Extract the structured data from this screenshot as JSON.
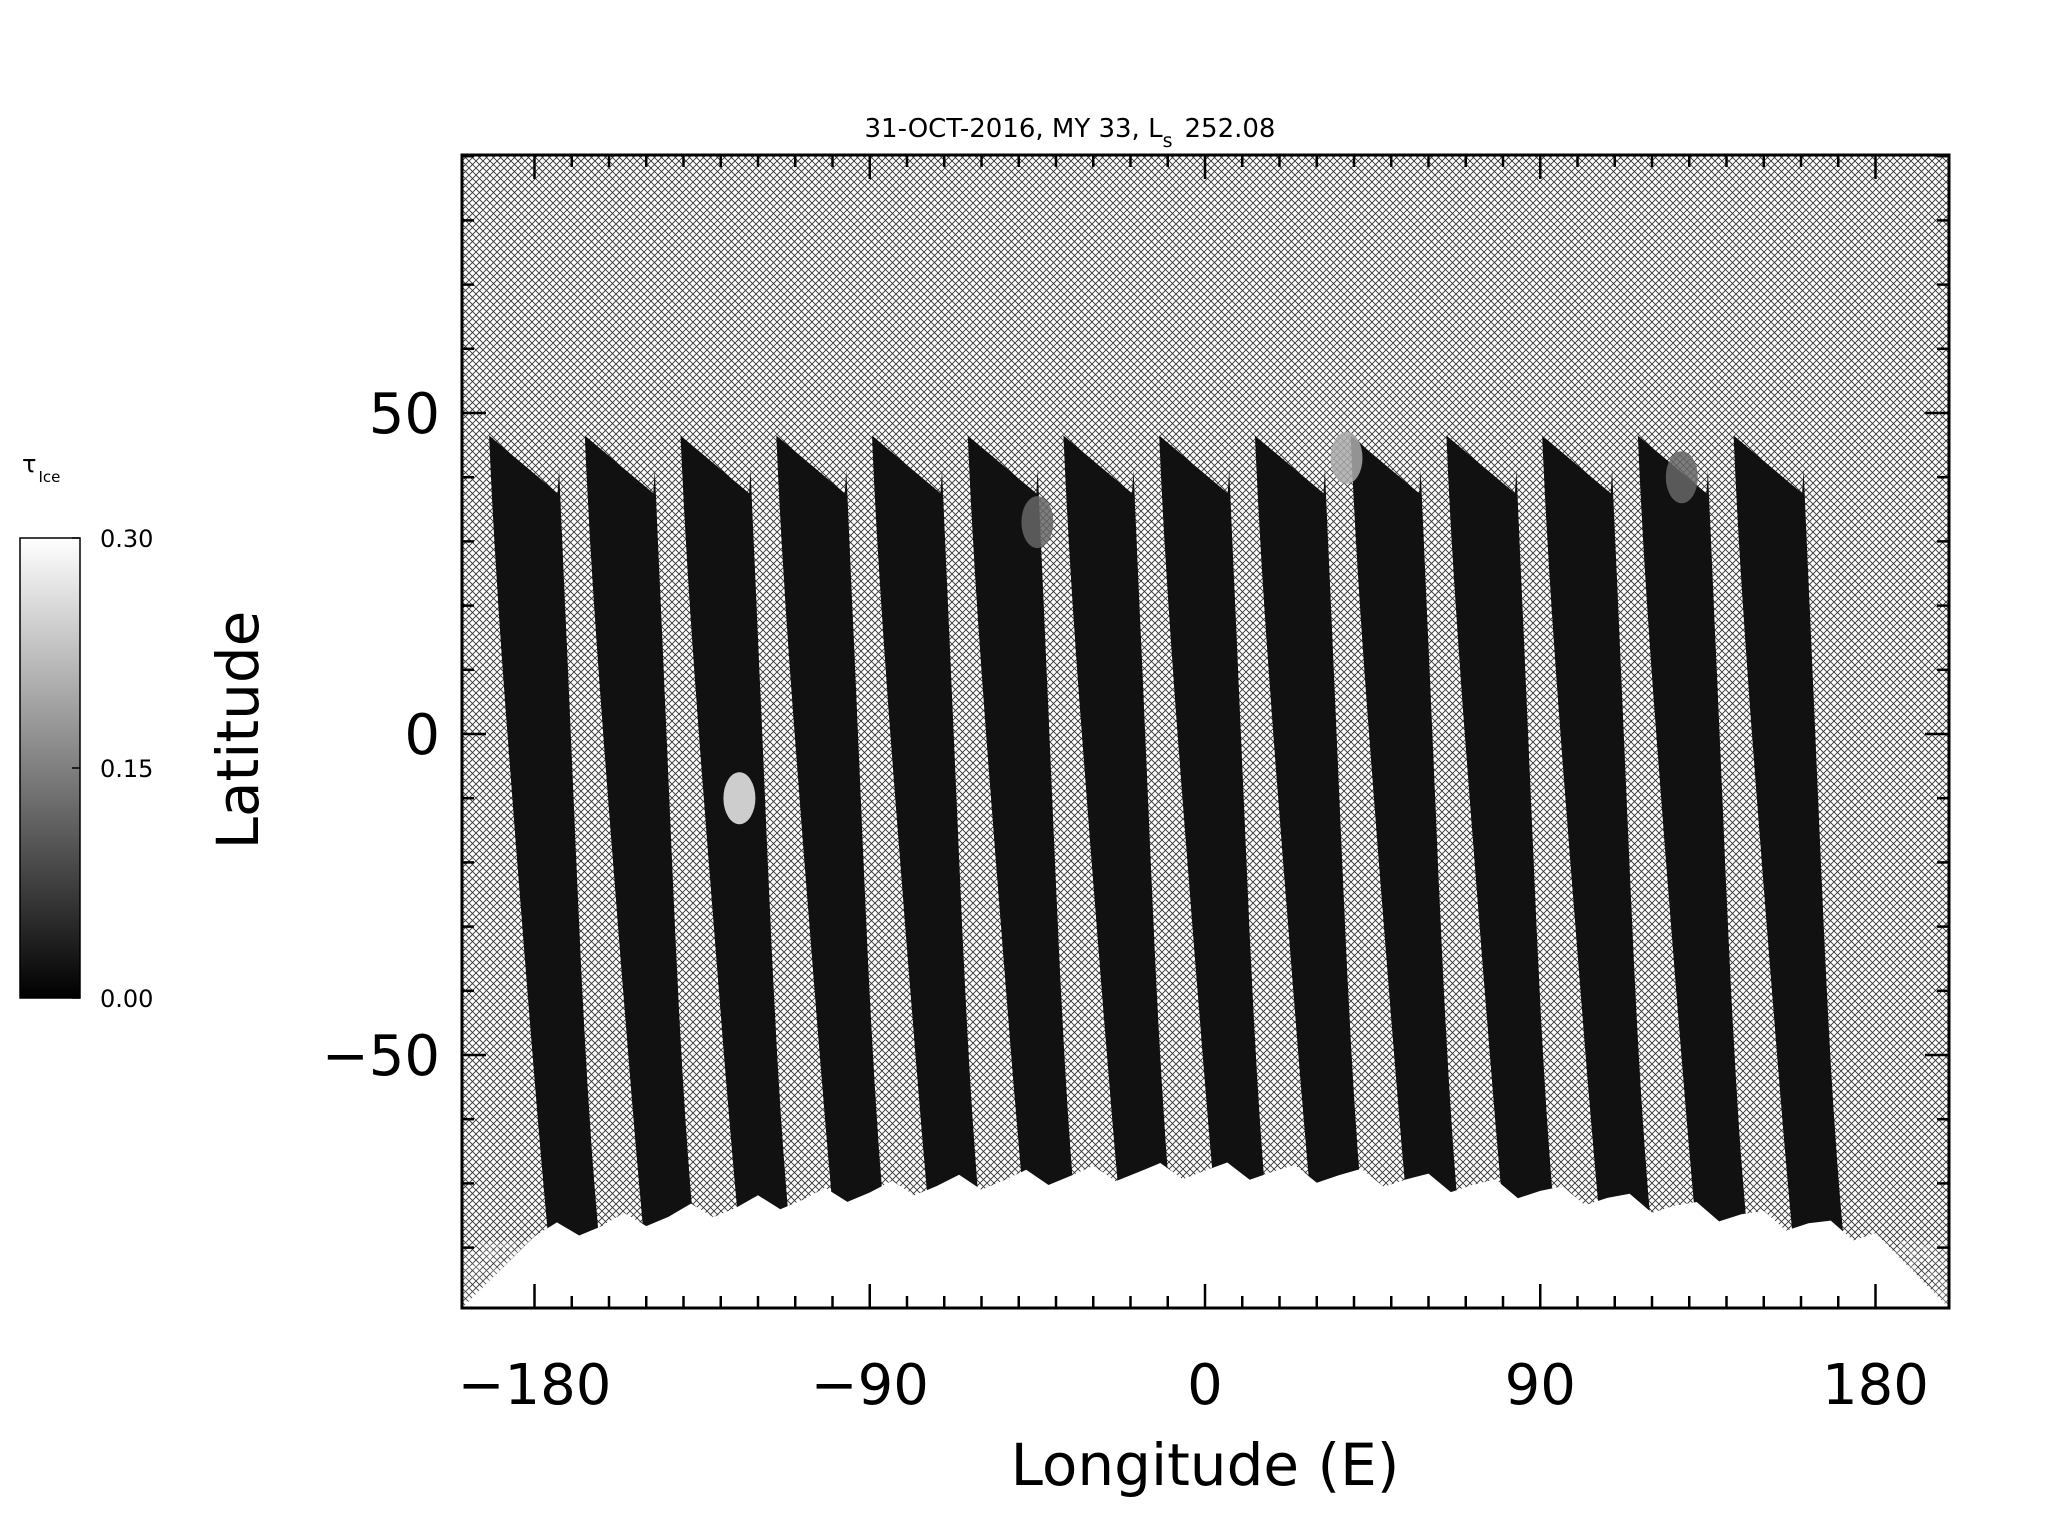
{
  "chart_data": {
    "type": "heatmap",
    "title": "31-OCT-2016, MY 33,  L",
    "title_subscript": "s",
    "title_value": "252.08",
    "xlabel": "Longitude (E)",
    "ylabel": "Latitude",
    "xlim": [
      -180,
      180
    ],
    "ylim": [
      -90,
      90
    ],
    "xticks": [
      -180,
      -90,
      0,
      90,
      180
    ],
    "xtick_labels": [
      "−180",
      "−90",
      "0",
      "90",
      "180"
    ],
    "yticks": [
      -50,
      0,
      50
    ],
    "ytick_labels": [
      "−50",
      "0",
      "50"
    ],
    "x_minor_step": 10,
    "y_minor_step": 10,
    "no_data_pattern": "cross-hatch",
    "colorbar": {
      "label": "τ",
      "label_subscript": "Ice",
      "min": 0.0,
      "max": 0.3,
      "ticks": [
        0.0,
        0.15,
        0.3
      ],
      "tick_labels": [
        "0.00",
        "0.15",
        "0.30"
      ],
      "colormap": "grayscale",
      "low_color": "#000000",
      "high_color": "#ffffff"
    },
    "swaths": {
      "count": 14,
      "start_lon": -183,
      "spacing_lon": 25.7,
      "top_lat": 46.5,
      "bottom_lat": -81.5,
      "lon_width_equator": 16,
      "typical_tau": 0.02
    },
    "polar_cap": {
      "description_lat_edge": -68,
      "tau": 0.3
    },
    "features": [
      {
        "lon": -125,
        "lat": -10,
        "tau": 0.28
      },
      {
        "lon": 38,
        "lat": 43,
        "tau": 0.2
      },
      {
        "lon": -45,
        "lat": 33,
        "tau": 0.12
      },
      {
        "lon": 128,
        "lat": 40,
        "tau": 0.12
      }
    ]
  }
}
